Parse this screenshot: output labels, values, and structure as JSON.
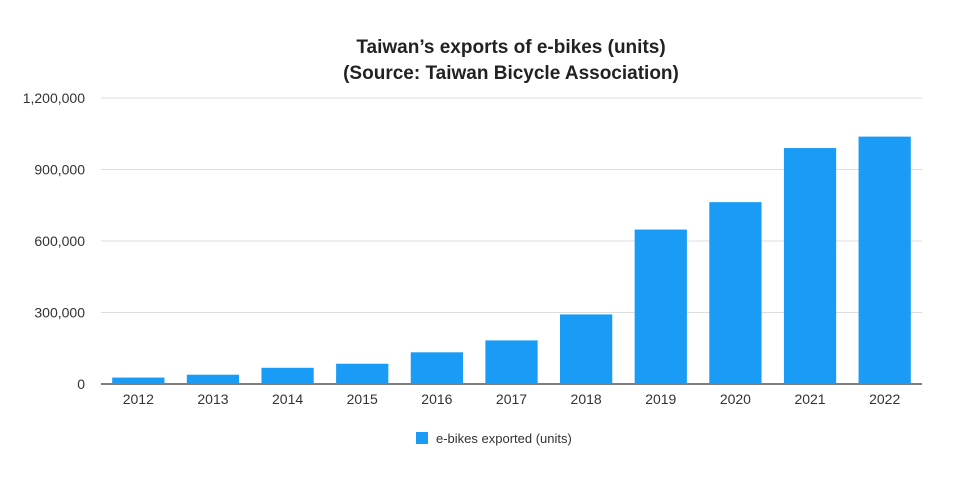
{
  "chart_data": {
    "type": "bar",
    "title": "Taiwan’s exports of e-bikes (units)",
    "subtitle": "(Source: Taiwan Bicycle Association)",
    "xlabel": "",
    "ylabel": "",
    "categories": [
      "2012",
      "2013",
      "2014",
      "2015",
      "2016",
      "2017",
      "2018",
      "2019",
      "2020",
      "2021",
      "2022"
    ],
    "series": [
      {
        "name": "e-bikes exported (units)",
        "values": [
          27000,
          39000,
          68000,
          85000,
          133000,
          183000,
          292000,
          648000,
          763000,
          990000,
          1038000
        ],
        "color": "#1a9bf5"
      }
    ],
    "ylim": [
      0,
      1200000
    ],
    "yticks": [
      0,
      300000,
      600000,
      900000,
      1200000
    ],
    "ytick_labels": [
      "0",
      "300,000",
      "600,000",
      "900,000",
      "1,200,000"
    ],
    "grid": true,
    "legend_position": "bottom"
  }
}
